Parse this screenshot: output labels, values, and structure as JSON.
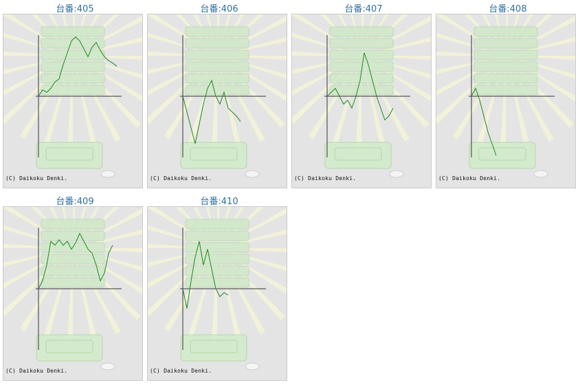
{
  "copyright": "(C) Daikoku Denki.",
  "colors": {
    "line": "#1a8a1a",
    "axis": "#333333",
    "title": "#2f6f9f"
  },
  "cards": [
    {
      "title": "台番:405",
      "values": [
        0,
        8,
        5,
        10,
        18,
        22,
        40,
        55,
        70,
        75,
        70,
        60,
        50,
        62,
        68,
        58,
        50,
        45,
        42,
        38
      ]
    },
    {
      "title": "台番:406",
      "values": [
        0,
        -20,
        -40,
        -60,
        -35,
        -10,
        10,
        20,
        0,
        -10,
        5,
        -15,
        -20,
        -25,
        -32
      ]
    },
    {
      "title": "台番:407",
      "values": [
        0,
        5,
        10,
        0,
        -10,
        -5,
        -15,
        0,
        20,
        55,
        40,
        20,
        0,
        -15,
        -30,
        -25,
        -15
      ]
    },
    {
      "title": "台番:408",
      "values": [
        0,
        10,
        -5,
        -25,
        -45,
        -60,
        -75
      ]
    },
    {
      "title": "台番:409",
      "values": [
        0,
        10,
        30,
        60,
        55,
        62,
        55,
        60,
        50,
        58,
        70,
        60,
        50,
        45,
        30,
        10,
        20,
        45,
        55
      ]
    },
    {
      "title": "台番:410",
      "values": [
        0,
        -25,
        10,
        40,
        60,
        30,
        50,
        25,
        0,
        -10,
        -5,
        -8
      ]
    }
  ]
}
